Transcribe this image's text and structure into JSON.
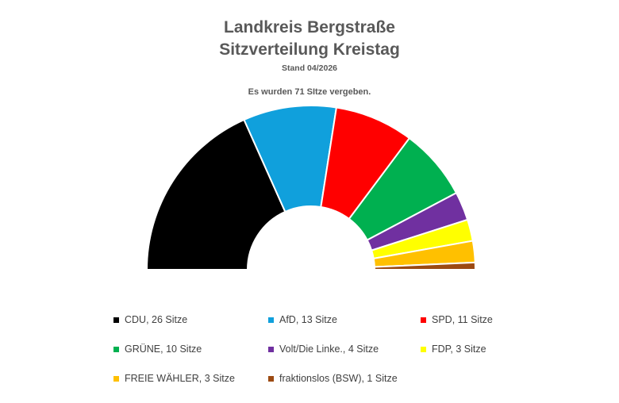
{
  "title_line1": "Landkreis Bergstraße",
  "title_line2": "Sitzverteilung Kreistag",
  "stand": "Stand 04/2026",
  "note": "Es wurden 71 SItze vergeben.",
  "chart_data": {
    "type": "pie",
    "variant": "half-doughnut",
    "total": 71,
    "legend_position": "bottom",
    "series": [
      {
        "name": "CDU",
        "label": "CDU, 26 Sitze",
        "value": 26,
        "color": "#000000"
      },
      {
        "name": "AfD",
        "label": "AfD, 13 Sitze",
        "value": 13,
        "color": "#10A0DC"
      },
      {
        "name": "SPD",
        "label": "SPD, 11 Sitze",
        "value": 11,
        "color": "#FF0000"
      },
      {
        "name": "GRÜNE",
        "label": "GRÜNE, 10 Sitze",
        "value": 10,
        "color": "#00B050"
      },
      {
        "name": "Volt/Die Linke.",
        "label": "Volt/Die Linke., 4 Sitze",
        "value": 4,
        "color": "#7030A0"
      },
      {
        "name": "FDP",
        "label": "FDP, 3 Sitze",
        "value": 3,
        "color": "#FFFF00"
      },
      {
        "name": "FREIE WÄHLER",
        "label": "FREIE WÄHLER, 3 Sitze",
        "value": 3,
        "color": "#FFC000"
      },
      {
        "name": "fraktionslos (BSW)",
        "label": "fraktionslos (BSW), 1 Sitze",
        "value": 1,
        "color": "#9C4A12"
      }
    ]
  }
}
